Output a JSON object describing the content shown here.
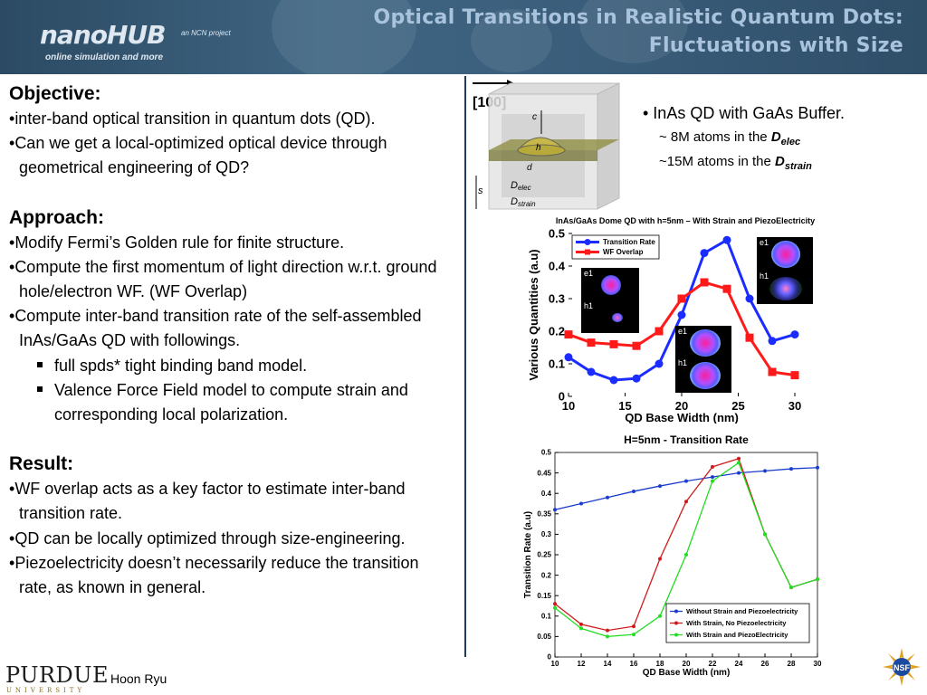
{
  "header": {
    "title_line1": "Optical Transitions in Realistic Quantum Dots:",
    "title_line2": "Fluctuations with Size",
    "logo_text": "nanoHUB",
    "logo_tagline": "online simulation and more",
    "logo_project": "an NCN project"
  },
  "objective": {
    "heading": "Objective:",
    "bullets": [
      "inter-band optical transition in quantum dots (QD).",
      "Can we get a local-optimized optical device through geometrical engineering of QD?"
    ]
  },
  "approach": {
    "heading": "Approach:",
    "bullets": [
      "Modify Fermi’s Golden rule for finite structure.",
      "Compute the first momentum of light direction w.r.t. ground hole/electron WF. (WF Overlap)",
      "Compute inter-band transition rate of the self-assembled InAs/GaAs QD with followings."
    ],
    "sub_bullets": [
      "full spds* tight binding band model.",
      "Valence Force Field model to compute strain and corresponding local polarization."
    ]
  },
  "result": {
    "heading": "Result:",
    "bullets": [
      "WF overlap acts as a key factor to estimate inter-band transition rate.",
      "QD can be locally optimized through size-engineering.",
      "Piezoelectricity doesn’t necessarily reduce the transition rate, as known in general."
    ]
  },
  "diagram": {
    "direction_label": "[100]",
    "labels": [
      "c",
      "h",
      "d",
      "s"
    ],
    "d_elec_main": "D",
    "d_elec_sub": "elec",
    "d_strain_main": "D",
    "d_strain_sub": "strain"
  },
  "notes": {
    "main": "• InAs QD with GaAs Buffer.",
    "line1_prefix": "~ 8M atoms in the ",
    "line1_var": "D",
    "line1_sub": "elec",
    "line2_prefix": "~15M atoms in the ",
    "line2_var": "D",
    "line2_sub": "strain"
  },
  "wf_labels": {
    "e": "e1",
    "h": "h1"
  },
  "footer": {
    "author": "Hoon Ryu",
    "university": "PURDUE",
    "university_sub": "UNIVERSITY",
    "nsf": "NSF"
  },
  "chart_data": [
    {
      "type": "line",
      "title": "InAs/GaAs Dome QD with h=5nm – With Strain and PiezoElectricity",
      "xlabel": "QD Base Width (nm)",
      "ylabel": "Various Quantities (a.u)",
      "xlim": [
        10,
        30
      ],
      "ylim": [
        0,
        0.5
      ],
      "xticks": [
        10,
        15,
        20,
        25,
        30
      ],
      "yticks": [
        0,
        0.1,
        0.2,
        0.3,
        0.4,
        0.5
      ],
      "ytick_labels": [
        "0",
        "0.1",
        "0.2",
        "0.3",
        "0.4",
        "0.5"
      ],
      "legend_position": "top-left",
      "x": [
        10,
        12,
        14,
        16,
        18,
        20,
        22,
        24,
        26,
        28,
        30
      ],
      "series": [
        {
          "name": "Transition Rate",
          "color": "#1a2cff",
          "marker": "circle",
          "values": [
            0.12,
            0.075,
            0.05,
            0.055,
            0.1,
            0.25,
            0.44,
            0.48,
            0.3,
            0.17,
            0.19
          ]
        },
        {
          "name": "WF Overlap",
          "color": "#ff1a1a",
          "marker": "square",
          "values": [
            0.19,
            0.165,
            0.16,
            0.155,
            0.2,
            0.3,
            0.35,
            0.33,
            0.18,
            0.075,
            0.065
          ]
        }
      ]
    },
    {
      "type": "line",
      "title": "H=5nm - Transition Rate",
      "xlabel": "QD Base Width (nm)",
      "ylabel": "Transition Rate (a.u)",
      "xlim": [
        10,
        30
      ],
      "ylim": [
        0,
        0.5
      ],
      "xticks": [
        10,
        12,
        14,
        16,
        18,
        20,
        22,
        24,
        26,
        28,
        30
      ],
      "yticks": [
        0,
        0.05,
        0.1,
        0.15,
        0.2,
        0.25,
        0.3,
        0.35,
        0.4,
        0.45,
        0.5
      ],
      "ytick_labels": [
        "0",
        "0.05",
        "0.1",
        "0.15",
        "0.2",
        "0.25",
        "0.3",
        "0.35",
        "0.4",
        "0.45",
        "0.5"
      ],
      "legend_position": "bottom-right",
      "grid": false,
      "x": [
        10,
        12,
        14,
        16,
        18,
        20,
        22,
        24,
        26,
        28,
        30
      ],
      "series": [
        {
          "name": "Without Strain and Piezoelectricity",
          "color": "#1a3cd0",
          "values": [
            0.36,
            0.375,
            0.39,
            0.405,
            0.418,
            0.43,
            0.44,
            0.45,
            0.455,
            0.46,
            0.463
          ]
        },
        {
          "name": "With Strain, No Piezoelectricity",
          "color": "#d01a1a",
          "values": [
            0.13,
            0.08,
            0.065,
            0.075,
            0.24,
            0.38,
            0.465,
            0.485,
            0.3,
            0.17,
            0.19
          ]
        },
        {
          "name": "With Strain and PiezoElectricity",
          "color": "#22dd22",
          "values": [
            0.12,
            0.07,
            0.05,
            0.055,
            0.1,
            0.25,
            0.43,
            0.475,
            0.3,
            0.17,
            0.19
          ]
        }
      ]
    }
  ]
}
